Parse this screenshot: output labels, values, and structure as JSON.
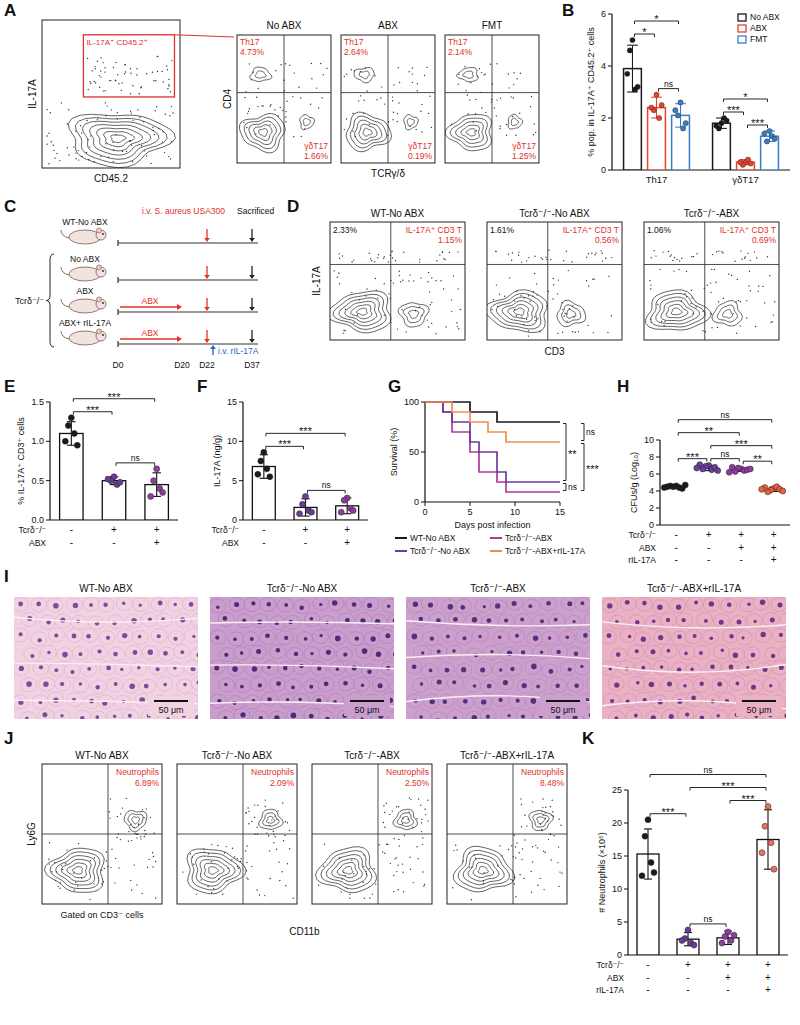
{
  "chart_data": [
    {
      "panel": "B",
      "type": "bar",
      "categories": [
        "Th17",
        "γδT17"
      ],
      "y_label": "% pop. in IL-17A⁺ CD45.2⁺ cells",
      "ylim": [
        0,
        6
      ],
      "yticks": [
        0,
        2,
        4,
        6
      ],
      "legend": "top-right",
      "series": [
        {
          "name": "No ABX",
          "color": "#1a1a1a",
          "values": [
            3.9,
            1.8
          ],
          "errors": [
            0.9,
            0.2
          ],
          "points": [
            [
              5.0,
              4.6,
              3.1,
              3.7,
              3.2
            ],
            [
              1.8,
              1.6,
              2.0,
              1.7,
              1.9
            ]
          ]
        },
        {
          "name": "ABX",
          "color": "#e8412c",
          "values": [
            2.4,
            0.3
          ],
          "errors": [
            0.4,
            0.1
          ],
          "points": [
            [
              2.9,
              2.3,
              2.0,
              2.4,
              2.5
            ],
            [
              0.3,
              0.2,
              0.4,
              0.3,
              0.25
            ]
          ]
        },
        {
          "name": "FMT",
          "color": "#3b7dc4",
          "values": [
            2.1,
            1.3
          ],
          "errors": [
            0.45,
            0.2
          ],
          "points": [
            [
              2.6,
              2.1,
              1.6,
              2.3,
              1.8
            ],
            [
              1.5,
              1.1,
              1.3,
              1.4,
              1.2
            ]
          ]
        }
      ],
      "comparisons": [
        {
          "category": 0,
          "pair": [
            0,
            1
          ],
          "label": "*"
        },
        {
          "category": 0,
          "pair": [
            1,
            2
          ],
          "label": "ns"
        },
        {
          "category": 0,
          "pair": [
            0,
            2
          ],
          "label": "*"
        },
        {
          "category": 1,
          "pair": [
            0,
            1
          ],
          "label": "***"
        },
        {
          "category": 1,
          "pair": [
            1,
            2
          ],
          "label": "***"
        },
        {
          "category": 1,
          "pair": [
            0,
            2
          ],
          "label": "*"
        }
      ]
    },
    {
      "panel": "E",
      "type": "bar",
      "categories": [
        null,
        null,
        null
      ],
      "y_label": "% IL-17A⁺ CD3⁺ cells",
      "ylim": [
        0,
        1.5
      ],
      "yticks": [
        {
          "value": 0,
          "label": "0.0"
        },
        0.5,
        {
          "value": 1,
          "label": "1.0"
        },
        1.5
      ],
      "values": [
        1.1,
        0.5,
        0.45
      ],
      "errors": [
        0.15,
        0.05,
        0.15
      ],
      "points": [
        [
          1.3,
          1.2,
          1.1,
          1.0,
          0.95
        ],
        [
          0.55,
          0.5,
          0.45,
          0.52,
          0.48
        ],
        [
          0.65,
          0.5,
          0.4,
          0.3,
          0.35
        ]
      ],
      "colors": [
        "#1a1a1a",
        "#6a3d9a",
        "#8e3c9e"
      ],
      "conditions": [
        {
          "name": "Tcrδ⁻/⁻",
          "signs": [
            "-",
            "+",
            "+"
          ]
        },
        {
          "name": "ABX",
          "signs": [
            "-",
            "-",
            "+"
          ]
        }
      ],
      "comparisons": [
        {
          "pair": [
            0,
            1
          ],
          "label": "***"
        },
        {
          "pair": [
            1,
            2
          ],
          "label": "ns"
        },
        {
          "pair": [
            0,
            2
          ],
          "label": "***"
        }
      ]
    },
    {
      "panel": "F",
      "type": "bar",
      "categories": [
        null,
        null,
        null
      ],
      "y_label": "IL-17A (ng/g)",
      "ylim": [
        0,
        15
      ],
      "yticks": [
        0,
        5,
        10,
        15
      ],
      "values": [
        6.8,
        1.6,
        1.8
      ],
      "errors": [
        1.5,
        1.1,
        1.0
      ],
      "points": [
        [
          8.6,
          7.5,
          6.5,
          5.8,
          5.5
        ],
        [
          3.0,
          2.0,
          1.2,
          0.8,
          1.0
        ],
        [
          2.8,
          2.5,
          1.5,
          1.0,
          1.2
        ]
      ],
      "colors": [
        "#1a1a1a",
        "#6a3d9a",
        "#8e3c9e"
      ],
      "conditions": [
        {
          "name": "Tcrδ⁻/⁻",
          "signs": [
            "-",
            "+",
            "+"
          ]
        },
        {
          "name": "ABX",
          "signs": [
            "-",
            "-",
            "+"
          ]
        }
      ],
      "comparisons": [
        {
          "pair": [
            0,
            1
          ],
          "label": "***"
        },
        {
          "pair": [
            1,
            2
          ],
          "label": "ns"
        },
        {
          "pair": [
            0,
            2
          ],
          "label": "***"
        }
      ]
    },
    {
      "panel": "G",
      "type": "line",
      "line_style": "step",
      "x_label": "Days post infection",
      "y_label": "Survival (%)",
      "xlim": [
        0,
        15
      ],
      "xticks": [
        0,
        5,
        10,
        15
      ],
      "ylim": [
        0,
        100
      ],
      "yticks": [
        0,
        50,
        100
      ],
      "legend": "bottom",
      "series": [
        {
          "name": "WT-No ABX",
          "color": "#1a1a1a",
          "x": [
            0,
            5,
            8,
            15
          ],
          "values": [
            100,
            90,
            80,
            80
          ]
        },
        {
          "name": "Tcrδ⁻/⁻-ABX",
          "color": "#b2399a",
          "x": [
            0,
            2,
            3,
            5,
            6,
            8,
            9,
            15
          ],
          "values": [
            100,
            90,
            70,
            50,
            30,
            20,
            10,
            10
          ]
        },
        {
          "name": "Tcrδ⁻/⁻-No ABX",
          "color": "#6a3d9a",
          "x": [
            0,
            2,
            3,
            5,
            6,
            8,
            9,
            15
          ],
          "values": [
            100,
            90,
            80,
            60,
            50,
            30,
            20,
            20
          ]
        },
        {
          "name": "Tcrδ⁻/⁻-ABX+rIL-17A",
          "color": "#f28c4e",
          "x": [
            0,
            3,
            5,
            7,
            9,
            15
          ],
          "values": [
            100,
            90,
            80,
            70,
            60,
            60
          ]
        }
      ],
      "comparisons": [
        {
          "pair": [
            0,
            2
          ],
          "label": "**"
        },
        {
          "pair": [
            0,
            3
          ],
          "label": "ns"
        },
        {
          "pair": [
            3,
            1
          ],
          "label": "***"
        },
        {
          "pair": [
            2,
            1
          ],
          "label": "ns"
        }
      ]
    },
    {
      "panel": "H",
      "type": "dot",
      "categories": [
        null,
        null,
        null,
        null
      ],
      "y_label": "CFUs/g (Log₁₀)",
      "ylim": [
        0,
        10
      ],
      "yticks": [
        0,
        2,
        4,
        6,
        8,
        10
      ],
      "values": [
        4.5,
        6.7,
        6.5,
        4.2
      ],
      "errors": [
        0.15,
        0.3,
        0.2,
        0.25
      ],
      "points": [
        [
          4.6,
          4.5,
          4.4,
          4.6,
          4.3,
          4.5,
          4.7,
          4.4
        ],
        [
          7.0,
          6.9,
          6.5,
          6.6,
          6.8,
          7.1,
          6.4,
          6.7
        ],
        [
          6.6,
          6.7,
          6.4,
          6.3,
          6.5,
          6.8,
          6.6,
          6.2
        ],
        [
          4.3,
          4.1,
          4.5,
          3.9,
          4.2,
          4.4,
          4.0,
          4.2
        ]
      ],
      "colors": [
        "#1a1a1a",
        "#6a3d9a",
        "#8e3c9e",
        "#e8603c"
      ],
      "conditions": [
        {
          "name": "Tcrδ⁻/⁻",
          "signs": [
            "-",
            "+",
            "+",
            "+"
          ]
        },
        {
          "name": "ABX",
          "signs": [
            "-",
            "-",
            "+",
            "+"
          ]
        },
        {
          "name": "rIL-17A",
          "signs": [
            "-",
            "-",
            "-",
            "+"
          ]
        }
      ],
      "comparisons": [
        {
          "pair": [
            0,
            1
          ],
          "label": "***"
        },
        {
          "pair": [
            1,
            2
          ],
          "label": "ns"
        },
        {
          "pair": [
            2,
            3
          ],
          "label": "**"
        },
        {
          "pair": [
            1,
            3
          ],
          "label": "***"
        },
        {
          "pair": [
            0,
            2
          ],
          "label": "**"
        },
        {
          "pair": [
            0,
            3
          ],
          "label": "ns"
        }
      ]
    },
    {
      "panel": "K",
      "type": "bar",
      "categories": [
        null,
        null,
        null,
        null
      ],
      "y_label": "# Neutrophils (×10⁵)",
      "ylim": [
        0,
        25
      ],
      "yticks": [
        0,
        5,
        10,
        15,
        20,
        25
      ],
      "values": [
        15.3,
        2.4,
        2.6,
        17.5
      ],
      "errors": [
        3.8,
        1.0,
        1.0,
        4.5
      ],
      "points": [
        [
          20.5,
          18,
          14,
          12,
          12.5
        ],
        [
          3.8,
          2.5,
          1.8,
          2.2,
          1.5
        ],
        [
          3.5,
          2.8,
          2.2,
          1.8,
          3.0
        ],
        [
          22.5,
          19.5,
          17,
          15.5,
          13
        ]
      ],
      "colors": [
        "#1a1a1a",
        "#6a3d9a",
        "#8e3c9e",
        "#e8705a"
      ],
      "conditions": [
        {
          "name": "Tcrδ⁻/⁻",
          "signs": [
            "-",
            "+",
            "+",
            "+"
          ]
        },
        {
          "name": "ABX",
          "signs": [
            "-",
            "-",
            "+",
            "+"
          ]
        },
        {
          "name": "rIL-17A",
          "signs": [
            "-",
            "-",
            "-",
            "+"
          ]
        }
      ],
      "comparisons": [
        {
          "pair": [
            0,
            1
          ],
          "label": "***"
        },
        {
          "pair": [
            1,
            2
          ],
          "label": "ns"
        },
        {
          "pair": [
            2,
            3
          ],
          "label": "***"
        },
        {
          "pair": [
            1,
            3
          ],
          "label": "***"
        },
        {
          "pair": [
            0,
            3
          ],
          "label": "ns"
        }
      ]
    }
  ],
  "flow_A": {
    "panel": "A",
    "gate_plot": {
      "x_label": "CD45.2",
      "y_label": "IL-17A",
      "gate": "IL-17A⁺ CD45.2⁺"
    },
    "x_label": "TCRγ/δ",
    "y_label": "CD4",
    "plots": [
      {
        "title": "No ABX",
        "upper_left": {
          "name": "Th17",
          "label": "4.73%"
        },
        "lower_right": {
          "name": "γδT17",
          "label": "1.66%"
        }
      },
      {
        "title": "ABX",
        "upper_left": {
          "name": "Th17",
          "label": "2.64%"
        },
        "lower_right": {
          "name": "γδT17",
          "label": "0.19%"
        }
      },
      {
        "title": "FMT",
        "upper_left": {
          "name": "Th17",
          "label": "2.14%"
        },
        "lower_right": {
          "name": "γδT17",
          "label": "1.25%"
        }
      }
    ]
  },
  "schematic_C": {
    "panel": "C",
    "infection": "i.v. S. aureus USA300",
    "endpoint": "Sacrificed",
    "days": [
      "D0",
      "D20",
      "D22",
      "D37"
    ],
    "treatment": "ABX",
    "rescue": "i.v. rIL-17A",
    "knockout_label": "Tcrδ⁻/⁻",
    "groups": [
      {
        "label": "WT-No ABX",
        "knockout": false,
        "abx": false,
        "rescue": false
      },
      {
        "label": "No ABX",
        "knockout": true,
        "abx": false,
        "rescue": false
      },
      {
        "label": "ABX",
        "knockout": true,
        "abx": true,
        "rescue": false
      },
      {
        "label": "ABX+ rIL-17A",
        "knockout": true,
        "abx": true,
        "rescue": true
      }
    ]
  },
  "flow_D": {
    "panel": "D",
    "x_label": "CD3",
    "y_label": "IL-17A",
    "gate": "IL-17A⁺ CD3 T",
    "plots": [
      {
        "title": "WT-No ABX",
        "upper_left": "2.33%",
        "gate_value": "1.15%"
      },
      {
        "title": "Tcrδ⁻/⁻-No ABX",
        "upper_left": "1.61%",
        "gate_value": "0.56%"
      },
      {
        "title": "Tcrδ⁻/⁻-ABX",
        "upper_left": "1.06%",
        "gate_value": "0.69%"
      }
    ]
  },
  "histology_I": {
    "panel": "I",
    "scale_bar": "50 μm",
    "titles": [
      "WT-No ABX",
      "Tcrδ⁻/⁻-No ABX",
      "Tcrδ⁻/⁻-ABX",
      "Tcrδ⁻/⁻-ABX+rIL-17A"
    ]
  },
  "flow_J": {
    "panel": "J",
    "x_label": "CD11b",
    "y_label": "Ly6G",
    "gate": "Neutrophils",
    "note": "Gated on CD3⁻ cells",
    "plots": [
      {
        "title": "WT-No ABX",
        "gate_value": "6.89%"
      },
      {
        "title": "Tcrδ⁻/⁻-No ABX",
        "gate_value": "2.09%"
      },
      {
        "title": "Tcrδ⁻/⁻-ABX",
        "gate_value": "2.50%"
      },
      {
        "title": "Tcrδ⁻/⁻-ABX+rIL-17A",
        "gate_value": "8.48%"
      }
    ]
  }
}
